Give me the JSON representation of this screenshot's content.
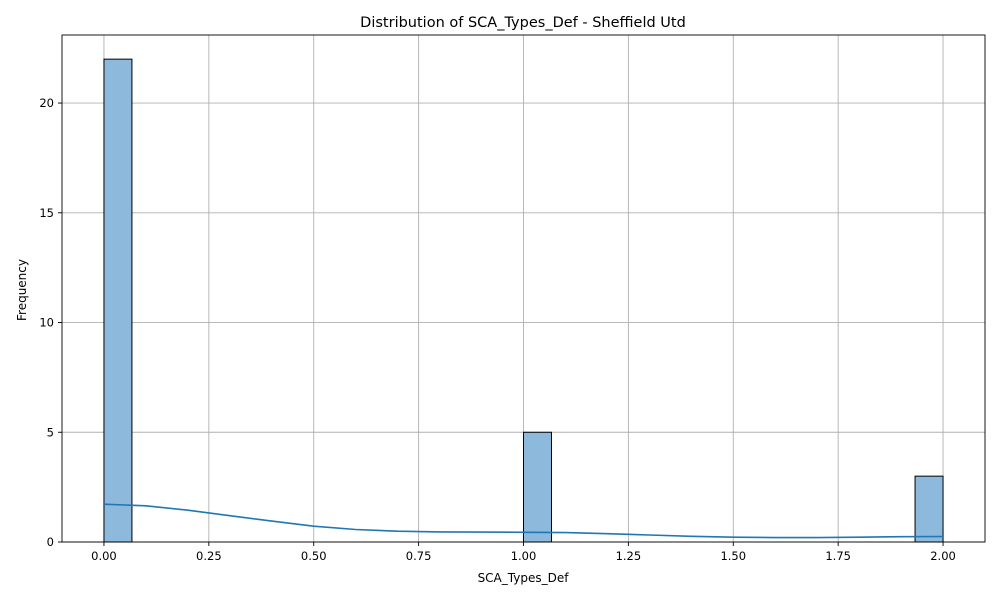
{
  "chart_data": {
    "type": "bar",
    "title": "Distribution of SCA_Types_Def - Sheffield Utd",
    "xlabel": "SCA_Types_Def",
    "ylabel": "Frequency",
    "xlim": [
      -0.1,
      2.1
    ],
    "ylim": [
      0,
      23.1
    ],
    "xticks": [
      0.0,
      0.25,
      0.5,
      0.75,
      1.0,
      1.25,
      1.5,
      1.75,
      2.0
    ],
    "xtick_labels": [
      "0.00",
      "0.25",
      "0.50",
      "0.75",
      "1.00",
      "1.25",
      "1.50",
      "1.75",
      "2.00"
    ],
    "yticks": [
      0,
      5,
      10,
      15,
      20
    ],
    "ytick_labels": [
      "0",
      "5",
      "10",
      "15",
      "20"
    ],
    "grid": true,
    "bin_width": 0.0667,
    "bars": [
      {
        "x0": 0.0,
        "x1": 0.0667,
        "value": 22
      },
      {
        "x0": 1.0,
        "x1": 1.0667,
        "value": 5
      },
      {
        "x0": 1.9333,
        "x1": 2.0,
        "value": 3
      }
    ],
    "kde": {
      "x": [
        0.0,
        0.1,
        0.2,
        0.3,
        0.4,
        0.5,
        0.6,
        0.7,
        0.8,
        0.9,
        1.0,
        1.1,
        1.2,
        1.3,
        1.4,
        1.5,
        1.6,
        1.7,
        1.8,
        1.9,
        2.0
      ],
      "y": [
        1.72,
        1.65,
        1.45,
        1.2,
        0.95,
        0.72,
        0.57,
        0.49,
        0.46,
        0.45,
        0.44,
        0.43,
        0.38,
        0.32,
        0.26,
        0.22,
        0.2,
        0.2,
        0.22,
        0.24,
        0.25
      ]
    },
    "colors": {
      "bar_fill": "#8cb9dc",
      "line": "#1f77b4"
    }
  }
}
